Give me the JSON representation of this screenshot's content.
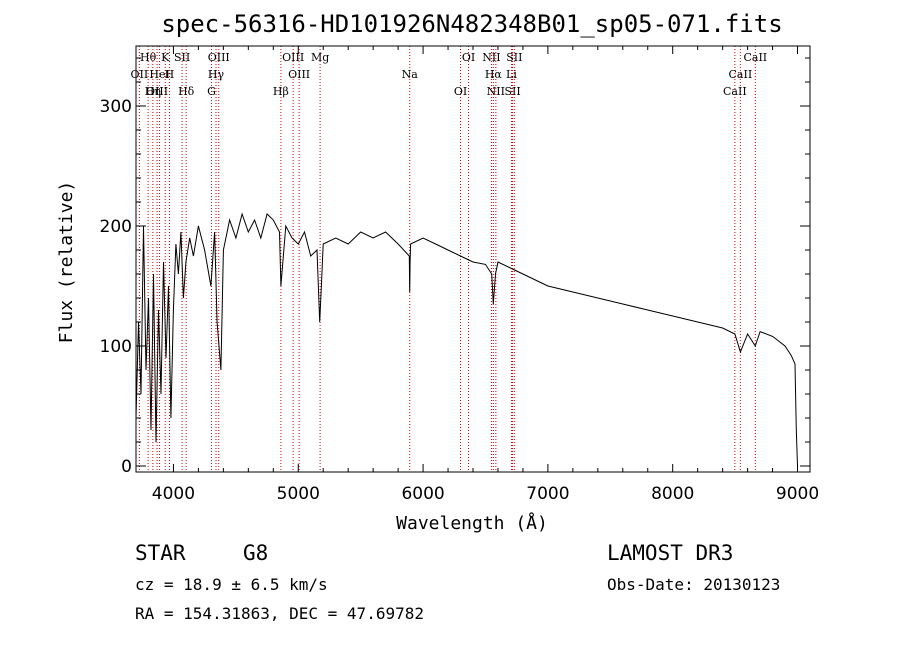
{
  "chart_data": {
    "type": "line",
    "title": "spec-56316-HD101926N482348B01_sp05-071.fits",
    "xlabel": "Wavelength (Å)",
    "ylabel": "Flux (relative)",
    "xlim": [
      3700,
      9100
    ],
    "ylim": [
      -5,
      350
    ],
    "xticks": [
      4000,
      5000,
      6000,
      7000,
      8000,
      9000
    ],
    "yticks": [
      0,
      100,
      200,
      300
    ],
    "grid": false,
    "series": [
      {
        "name": "flux",
        "x": [
          3700,
          3720,
          3740,
          3760,
          3780,
          3800,
          3820,
          3840,
          3860,
          3880,
          3900,
          3920,
          3940,
          3960,
          3980,
          4000,
          4020,
          4040,
          4060,
          4080,
          4100,
          4130,
          4160,
          4200,
          4250,
          4300,
          4330,
          4350,
          4380,
          4400,
          4450,
          4500,
          4550,
          4600,
          4650,
          4700,
          4750,
          4800,
          4850,
          4861,
          4900,
          4950,
          5000,
          5050,
          5100,
          5150,
          5172,
          5183,
          5200,
          5300,
          5400,
          5500,
          5600,
          5700,
          5800,
          5890,
          5893,
          5896,
          5900,
          6000,
          6100,
          6200,
          6300,
          6400,
          6500,
          6550,
          6563,
          6580,
          6600,
          6700,
          6800,
          6900,
          7000,
          7200,
          7400,
          7600,
          7800,
          8000,
          8200,
          8400,
          8498,
          8542,
          8600,
          8662,
          8700,
          8800,
          8900,
          8950,
          8980,
          8990,
          9000
        ],
        "values": [
          40,
          120,
          60,
          200,
          80,
          140,
          30,
          160,
          20,
          130,
          60,
          170,
          90,
          150,
          40,
          130,
          185,
          160,
          195,
          140,
          170,
          190,
          175,
          200,
          180,
          150,
          195,
          120,
          80,
          180,
          205,
          190,
          210,
          195,
          205,
          190,
          210,
          205,
          195,
          150,
          200,
          190,
          185,
          195,
          175,
          180,
          120,
          145,
          185,
          190,
          185,
          195,
          190,
          195,
          185,
          175,
          145,
          170,
          185,
          190,
          185,
          180,
          175,
          170,
          168,
          160,
          135,
          160,
          170,
          165,
          160,
          155,
          150,
          145,
          140,
          135,
          130,
          125,
          120,
          115,
          110,
          95,
          110,
          100,
          112,
          108,
          100,
          92,
          85,
          30,
          0
        ]
      }
    ],
    "line_labels": [
      {
        "label": "Hθ",
        "x": 3797
      },
      {
        "label": "OII",
        "x": 3727
      },
      {
        "label": "OIII",
        "x": 3869
      },
      {
        "label": "K",
        "x": 3934
      },
      {
        "label": "HeI",
        "x": 3889
      },
      {
        "label": "Hη",
        "x": 3835
      },
      {
        "label": "SII",
        "x": 4069
      },
      {
        "label": "H",
        "x": 3968
      },
      {
        "label": "Hδ",
        "x": 4102
      },
      {
        "label": "OIII",
        "x": 4363
      },
      {
        "label": "Hγ",
        "x": 4341
      },
      {
        "label": "G",
        "x": 4305
      },
      {
        "label": "OIII",
        "x": 4959
      },
      {
        "label": "OIII",
        "x": 5007
      },
      {
        "label": "Hβ",
        "x": 4861
      },
      {
        "label": "Mg",
        "x": 5175
      },
      {
        "label": "Na",
        "x": 5893
      },
      {
        "label": "OI",
        "x": 6300
      },
      {
        "label": "OI",
        "x": 6364
      },
      {
        "label": "Hα",
        "x": 6563
      },
      {
        "label": "SII",
        "x": 6717
      },
      {
        "label": "NII",
        "x": 6548
      },
      {
        "label": "Li",
        "x": 6708
      },
      {
        "label": "NII",
        "x": 6583
      },
      {
        "label": "SII",
        "x": 6731
      },
      {
        "label": "CaII",
        "x": 8542
      },
      {
        "label": "CaII",
        "x": 8498
      },
      {
        "label": "CaII",
        "x": 8662
      }
    ]
  },
  "info": {
    "obj_class": "STAR",
    "subclass": "G8",
    "survey": "LAMOST DR3",
    "cz": "cz = 18.9 ± 6.5 km/s",
    "obs_date": "Obs-Date: 20130123",
    "coords": "RA = 154.31863, DEC =  47.69782"
  }
}
